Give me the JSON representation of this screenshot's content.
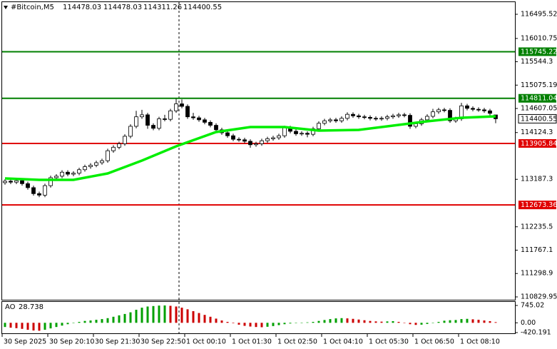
{
  "symbol": "#Bitcoin,M5",
  "chart_data": {
    "type": "candlestick",
    "categories": [
      "30 Sep 2025",
      null,
      null,
      null,
      null,
      null,
      null,
      null,
      "30 Sep 20:10",
      null,
      null,
      null,
      null,
      null,
      null,
      null,
      "30 Sep 21:30",
      null,
      null,
      null,
      null,
      null,
      null,
      null,
      "30 Sep 22:50",
      null,
      null,
      null,
      null,
      null,
      null,
      null,
      "1 Oct 00:10",
      null,
      null,
      null,
      null,
      null,
      null,
      null,
      "1 Oct 01:30",
      null,
      null,
      null,
      null,
      null,
      null,
      null,
      "1 Oct 02:50",
      null,
      null,
      null,
      null,
      null,
      null,
      null,
      "1 Oct 04:10",
      null,
      null,
      null,
      null,
      null,
      null,
      null,
      "1 Oct 05:30",
      null,
      null,
      null,
      null,
      null,
      null,
      null,
      "1 Oct 06:50",
      null,
      null,
      null,
      null,
      null,
      null,
      null,
      "1 Oct 08:10",
      null,
      null,
      null,
      null,
      null,
      null
    ],
    "open": [
      113120,
      113150,
      113130,
      113160,
      113100,
      113020,
      112900,
      112870,
      113060,
      113220,
      113250,
      113330,
      113290,
      113310,
      113380,
      113440,
      113470,
      113520,
      113560,
      113760,
      113830,
      113900,
      114050,
      114250,
      114440,
      114480,
      114270,
      114210,
      114400,
      114390,
      114560,
      114700,
      114650,
      114440,
      114420,
      114380,
      114330,
      114270,
      114180,
      114120,
      114060,
      113990,
      113980,
      113950,
      113880,
      113900,
      113960,
      114000,
      114020,
      114060,
      114220,
      114150,
      114100,
      114110,
      114090,
      114200,
      114310,
      114360,
      114380,
      114360,
      114410,
      114490,
      114460,
      114440,
      114430,
      114410,
      114400,
      114410,
      114440,
      114460,
      114480,
      114470,
      114250,
      114300,
      114380,
      114450,
      114540,
      114580,
      114570,
      114360,
      114400,
      114660,
      114610,
      114590,
      114580,
      114560,
      114478.03
    ],
    "high": [
      113190,
      113190,
      113200,
      113200,
      113140,
      113060,
      112940,
      113100,
      113260,
      113290,
      113370,
      113370,
      113350,
      113420,
      113480,
      113510,
      113560,
      113600,
      113800,
      113870,
      113940,
      114090,
      114290,
      114560,
      114580,
      114520,
      114310,
      114440,
      114480,
      114600,
      114800,
      114790,
      114690,
      114520,
      114460,
      114420,
      114370,
      114310,
      114220,
      114160,
      114100,
      114030,
      114020,
      113990,
      113940,
      114000,
      114040,
      114060,
      114100,
      114260,
      114260,
      114190,
      114150,
      114150,
      114240,
      114350,
      114400,
      114420,
      114420,
      114450,
      114530,
      114530,
      114500,
      114480,
      114470,
      114450,
      114450,
      114480,
      114500,
      114520,
      114520,
      114510,
      114340,
      114420,
      114490,
      114600,
      114620,
      114620,
      114610,
      114440,
      114720,
      114700,
      114650,
      114630,
      114620,
      114600,
      114478.03
    ],
    "low": [
      113080,
      113090,
      113090,
      113060,
      112980,
      112860,
      112830,
      112830,
      113020,
      113180,
      113210,
      113250,
      113250,
      113270,
      113340,
      113400,
      113430,
      113480,
      113520,
      113720,
      113790,
      113860,
      114010,
      114210,
      114400,
      114200,
      114170,
      114170,
      114350,
      114350,
      114520,
      114610,
      114400,
      114380,
      114340,
      114290,
      114230,
      114140,
      114080,
      114020,
      113950,
      113940,
      113910,
      113820,
      113840,
      113860,
      113920,
      113960,
      113980,
      114020,
      114110,
      114060,
      114060,
      114030,
      114050,
      114160,
      114270,
      114320,
      114320,
      114320,
      114370,
      114420,
      114400,
      114390,
      114370,
      114360,
      114360,
      114370,
      114400,
      114420,
      114430,
      114200,
      114210,
      114260,
      114340,
      114410,
      114500,
      114530,
      114320,
      114320,
      114360,
      114570,
      114550,
      114540,
      114520,
      114470,
      114311.26
    ],
    "close": [
      113150,
      113130,
      113160,
      113100,
      113020,
      112900,
      112870,
      113060,
      113220,
      113250,
      113330,
      113290,
      113310,
      113380,
      113440,
      113470,
      113520,
      113560,
      113760,
      113830,
      113900,
      114050,
      114250,
      114440,
      114480,
      114270,
      114210,
      114400,
      114390,
      114560,
      114700,
      114650,
      114440,
      114420,
      114380,
      114330,
      114270,
      114180,
      114120,
      114060,
      113990,
      113980,
      113950,
      113880,
      113900,
      113960,
      114000,
      114020,
      114060,
      114220,
      114150,
      114100,
      114110,
      114090,
      114200,
      114310,
      114360,
      114380,
      114360,
      114410,
      114490,
      114460,
      114440,
      114430,
      114410,
      114400,
      114410,
      114440,
      114460,
      114480,
      114470,
      114250,
      114300,
      114380,
      114450,
      114540,
      114580,
      114570,
      114360,
      114400,
      114660,
      114610,
      114590,
      114580,
      114560,
      114510,
      114400.55
    ],
    "up_color": "#ffffff",
    "down_color": "#000000",
    "ylim": [
      110829.95,
      116495.52
    ],
    "yticks": [
      116495.52,
      116010.75,
      115544.3,
      115075.19,
      114607.05,
      114124.3,
      113187.3,
      112235.5,
      111767.1,
      111298.9,
      110829.95
    ],
    "moving_average": {
      "color": "#00ee00",
      "x": [
        0,
        6,
        12,
        18,
        24,
        30,
        37,
        43,
        49,
        55,
        62,
        68,
        74,
        80,
        86
      ],
      "values": [
        113205,
        113177,
        113177,
        113305,
        113563,
        113849,
        114135,
        114235,
        114235,
        114164,
        114178,
        114264,
        114350,
        114421,
        114450
      ]
    },
    "levels": [
      {
        "value": 115745.22,
        "color": "#008000"
      },
      {
        "value": 114811.04,
        "color": "#008000"
      },
      {
        "value": 113905.84,
        "color": "#e00000"
      },
      {
        "value": 112673.36,
        "color": "#e00000"
      }
    ],
    "indicator": {
      "name": "AO",
      "values": [
        -180,
        -210,
        -230,
        -260,
        -300,
        -330,
        -340,
        -300,
        -240,
        -180,
        -120,
        -60,
        0,
        40,
        80,
        100,
        130,
        160,
        200,
        260,
        320,
        380,
        450,
        560,
        650,
        700,
        720,
        740,
        745,
        730,
        700,
        650,
        580,
        500,
        420,
        340,
        260,
        180,
        100,
        40,
        -20,
        -80,
        -130,
        -160,
        -180,
        -190,
        -170,
        -140,
        -100,
        -60,
        -30,
        -10,
        10,
        20,
        40,
        80,
        120,
        160,
        190,
        200,
        190,
        170,
        140,
        110,
        80,
        60,
        50,
        60,
        70,
        40,
        -10,
        -60,
        -90,
        -80,
        -50,
        -10,
        40,
        90,
        110,
        120,
        160,
        170,
        150,
        130,
        100,
        70,
        28.738
      ],
      "up_color": "#00a000",
      "down_color": "#cc0000",
      "ylim": [
        -420.191,
        745.02
      ],
      "yticks": [
        745.02,
        {
          "value": 0,
          "label": "0.00"
        },
        -420.191
      ]
    }
  }
}
